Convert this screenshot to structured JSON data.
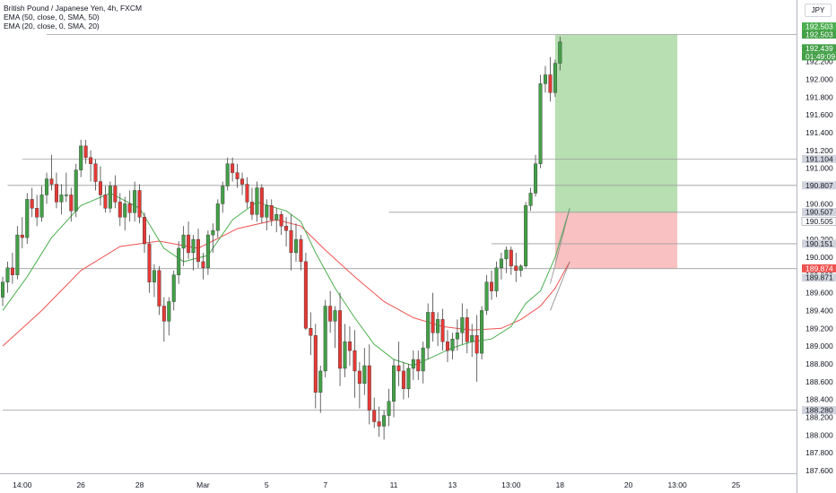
{
  "legend": {
    "symbol": "British Pound / Japanese Yen, 4h, FXCM",
    "ema50": "EMA (50, close, 0, SMA, 50)",
    "ema20": "EMA (20, close, 0, SMA, 20)"
  },
  "currency_label": "JPY",
  "colors": {
    "up": "#26a69a",
    "up_fill": "#43a047",
    "down": "#e53935",
    "ema20": "#4caf50",
    "ema50": "#ef5350",
    "profit_zone": "#b7dfb1",
    "loss_zone": "#f9c1c1",
    "axis_text": "#131722",
    "hline": "#9e9e9e",
    "price_tag": "#43a047",
    "stop_tag": "#ef5350"
  },
  "chart_data": {
    "type": "candlestick",
    "y_axis": {
      "range": [
        187.5,
        192.75
      ],
      "ticks": [
        "192.200",
        "192.000",
        "191.800",
        "191.600",
        "191.400",
        "191.200",
        "191.000",
        "190.800",
        "190.600",
        "190.400",
        "190.200",
        "190.000",
        "189.800",
        "189.600",
        "189.400",
        "189.200",
        "189.000",
        "188.800",
        "188.600",
        "188.400",
        "188.200",
        "188.000",
        "187.800",
        "187.600"
      ],
      "tick_values": [
        192.2,
        192.0,
        191.8,
        191.6,
        191.4,
        191.2,
        191.0,
        190.8,
        190.6,
        190.4,
        190.2,
        190.0,
        189.8,
        189.6,
        189.4,
        189.2,
        189.0,
        188.8,
        188.6,
        188.4,
        188.2,
        188.0,
        187.8,
        187.6
      ]
    },
    "x_axis": {
      "labels": [
        "14:00",
        "26",
        "28",
        "Mar",
        "5",
        "7",
        "11",
        "13",
        "13:00",
        "18",
        "20",
        "13:00",
        "25"
      ],
      "label_bars": [
        4,
        16,
        28,
        41,
        54,
        66,
        80,
        92,
        104,
        114,
        128,
        138,
        150
      ]
    },
    "ohlc": [
      [
        189.55,
        189.78,
        189.45,
        189.72
      ],
      [
        189.72,
        189.95,
        189.6,
        189.88
      ],
      [
        189.88,
        190.05,
        189.7,
        189.8
      ],
      [
        189.8,
        190.35,
        189.75,
        190.25
      ],
      [
        190.25,
        190.45,
        190.1,
        190.22
      ],
      [
        190.22,
        190.72,
        190.15,
        190.65
      ],
      [
        190.65,
        190.78,
        190.45,
        190.55
      ],
      [
        190.55,
        190.7,
        190.35,
        190.45
      ],
      [
        190.45,
        190.8,
        190.4,
        190.7
      ],
      [
        190.7,
        190.95,
        190.6,
        190.88
      ],
      [
        190.88,
        191.15,
        190.75,
        190.82
      ],
      [
        190.82,
        190.95,
        190.55,
        190.62
      ],
      [
        190.62,
        190.82,
        190.48,
        190.7
      ],
      [
        190.7,
        190.95,
        190.62,
        190.7
      ],
      [
        190.7,
        190.78,
        190.4,
        190.52
      ],
      [
        190.52,
        191.05,
        190.45,
        190.98
      ],
      [
        190.98,
        191.32,
        190.9,
        191.25
      ],
      [
        191.25,
        191.32,
        191.05,
        191.12
      ],
      [
        191.12,
        191.2,
        190.85,
        191.05
      ],
      [
        191.05,
        191.1,
        190.75,
        190.85
      ],
      [
        190.85,
        191.02,
        190.58,
        190.7
      ],
      [
        190.7,
        190.8,
        190.5,
        190.55
      ],
      [
        190.55,
        190.85,
        190.5,
        190.8
      ],
      [
        190.8,
        190.92,
        190.55,
        190.62
      ],
      [
        190.62,
        190.72,
        190.35,
        190.45
      ],
      [
        190.45,
        190.68,
        190.3,
        190.6
      ],
      [
        190.6,
        190.75,
        190.4,
        190.5
      ],
      [
        190.5,
        190.85,
        190.4,
        190.75
      ],
      [
        190.75,
        190.82,
        190.38,
        190.45
      ],
      [
        190.45,
        190.5,
        190.05,
        190.15
      ],
      [
        190.15,
        190.25,
        189.6,
        189.72
      ],
      [
        189.72,
        189.92,
        189.55,
        189.85
      ],
      [
        189.85,
        189.9,
        189.35,
        189.45
      ],
      [
        189.45,
        189.55,
        189.05,
        189.28
      ],
      [
        189.28,
        189.55,
        189.12,
        189.5
      ],
      [
        189.5,
        189.85,
        189.4,
        189.8
      ],
      [
        189.8,
        190.18,
        189.7,
        190.1
      ],
      [
        190.1,
        190.35,
        189.9,
        190.25
      ],
      [
        190.25,
        190.4,
        189.98,
        190.05
      ],
      [
        190.05,
        190.25,
        189.85,
        190.2
      ],
      [
        190.2,
        190.32,
        189.88,
        189.95
      ],
      [
        189.95,
        190.05,
        189.75,
        189.88
      ],
      [
        189.88,
        190.3,
        189.8,
        190.25
      ],
      [
        190.25,
        190.38,
        190.05,
        190.3
      ],
      [
        190.3,
        190.65,
        190.22,
        190.6
      ],
      [
        190.6,
        190.85,
        190.5,
        190.8
      ],
      [
        190.8,
        191.12,
        190.75,
        191.05
      ],
      [
        191.05,
        191.12,
        190.85,
        190.95
      ],
      [
        190.95,
        191.05,
        190.78,
        190.88
      ],
      [
        190.88,
        190.95,
        190.7,
        190.82
      ],
      [
        190.82,
        190.9,
        190.55,
        190.62
      ],
      [
        190.62,
        190.78,
        190.42,
        190.48
      ],
      [
        190.48,
        190.85,
        190.4,
        190.78
      ],
      [
        190.78,
        190.82,
        190.38,
        190.45
      ],
      [
        190.45,
        190.65,
        190.3,
        190.58
      ],
      [
        190.58,
        190.65,
        190.35,
        190.42
      ],
      [
        190.42,
        190.55,
        190.28,
        190.48
      ],
      [
        190.48,
        190.52,
        190.25,
        190.35
      ],
      [
        190.35,
        190.45,
        190.12,
        190.3
      ],
      [
        190.3,
        190.48,
        189.85,
        190.05
      ],
      [
        190.05,
        190.38,
        189.95,
        190.2
      ],
      [
        190.2,
        190.25,
        189.85,
        189.95
      ],
      [
        189.95,
        190.05,
        189.18,
        189.2
      ],
      [
        189.2,
        189.38,
        188.9,
        189.12
      ],
      [
        189.12,
        189.25,
        188.3,
        188.48
      ],
      [
        188.48,
        188.78,
        188.25,
        188.72
      ],
      [
        188.72,
        189.52,
        188.65,
        189.45
      ],
      [
        189.45,
        189.62,
        189.15,
        189.28
      ],
      [
        189.28,
        189.45,
        188.98,
        189.4
      ],
      [
        189.4,
        189.6,
        188.55,
        188.75
      ],
      [
        188.75,
        189.25,
        188.65,
        189.05
      ],
      [
        189.05,
        189.22,
        188.78,
        188.95
      ],
      [
        188.95,
        189.18,
        188.42,
        188.72
      ],
      [
        188.72,
        188.82,
        188.3,
        188.58
      ],
      [
        188.58,
        188.98,
        188.45,
        188.78
      ],
      [
        188.78,
        189.02,
        188.12,
        188.28
      ],
      [
        188.28,
        188.42,
        188.08,
        188.15
      ],
      [
        188.15,
        188.32,
        187.98,
        188.1
      ],
      [
        188.1,
        188.28,
        187.95,
        188.22
      ],
      [
        188.22,
        188.52,
        188.1,
        188.38
      ],
      [
        188.38,
        188.85,
        188.2,
        188.78
      ],
      [
        188.78,
        189.05,
        188.55,
        188.72
      ],
      [
        188.72,
        188.82,
        188.4,
        188.52
      ],
      [
        188.52,
        188.8,
        188.42,
        188.75
      ],
      [
        188.75,
        188.95,
        188.62,
        188.85
      ],
      [
        188.85,
        188.95,
        188.62,
        188.72
      ],
      [
        188.72,
        189.05,
        188.58,
        188.98
      ],
      [
        188.98,
        189.48,
        188.85,
        189.38
      ],
      [
        189.38,
        189.6,
        189.05,
        189.15
      ],
      [
        189.15,
        189.38,
        189.0,
        189.3
      ],
      [
        189.3,
        189.42,
        188.95,
        189.05
      ],
      [
        189.05,
        189.18,
        188.82,
        188.95
      ],
      [
        188.95,
        189.15,
        188.85,
        189.08
      ],
      [
        189.08,
        189.3,
        188.95,
        189.15
      ],
      [
        189.15,
        189.48,
        189.02,
        189.32
      ],
      [
        189.32,
        189.42,
        188.92,
        189.05
      ],
      [
        189.05,
        189.25,
        188.88,
        189.12
      ],
      [
        189.12,
        189.35,
        188.6,
        188.92
      ],
      [
        188.92,
        189.45,
        188.85,
        189.4
      ],
      [
        189.4,
        189.8,
        189.35,
        189.72
      ],
      [
        189.72,
        189.85,
        189.52,
        189.62
      ],
      [
        189.62,
        189.95,
        189.55,
        189.88
      ],
      [
        189.88,
        190.05,
        189.75,
        189.98
      ],
      [
        189.98,
        190.12,
        189.82,
        190.08
      ],
      [
        190.08,
        190.12,
        189.8,
        189.9
      ],
      [
        189.9,
        190.05,
        189.72,
        189.85
      ],
      [
        189.85,
        189.92,
        189.78,
        189.9
      ],
      [
        189.9,
        190.62,
        189.88,
        190.58
      ],
      [
        190.58,
        190.78,
        190.52,
        190.72
      ],
      [
        190.72,
        191.15,
        190.68,
        191.05
      ],
      [
        191.05,
        192.05,
        191.0,
        191.95
      ],
      [
        191.95,
        192.15,
        191.85,
        192.05
      ],
      [
        192.05,
        192.25,
        191.75,
        191.85
      ],
      [
        191.85,
        192.22,
        191.8,
        192.18
      ],
      [
        192.18,
        192.48,
        192.1,
        192.42
      ]
    ],
    "ema20": [
      [
        0,
        189.4
      ],
      [
        5,
        189.78
      ],
      [
        10,
        190.22
      ],
      [
        16,
        190.58
      ],
      [
        22,
        190.72
      ],
      [
        28,
        190.55
      ],
      [
        33,
        190.1
      ],
      [
        37,
        189.95
      ],
      [
        42,
        190.02
      ],
      [
        47,
        190.42
      ],
      [
        52,
        190.62
      ],
      [
        58,
        190.52
      ],
      [
        61,
        190.4
      ],
      [
        64,
        190.05
      ],
      [
        68,
        189.65
      ],
      [
        72,
        189.32
      ],
      [
        76,
        189.02
      ],
      [
        80,
        188.85
      ],
      [
        84,
        188.78
      ],
      [
        88,
        188.88
      ],
      [
        92,
        188.98
      ],
      [
        96,
        189.05
      ],
      [
        100,
        189.08
      ],
      [
        104,
        189.22
      ],
      [
        107,
        189.48
      ],
      [
        110,
        189.62
      ],
      [
        113,
        190.0
      ],
      [
        116,
        190.55
      ]
    ],
    "ema50": [
      [
        0,
        189.0
      ],
      [
        8,
        189.4
      ],
      [
        16,
        189.85
      ],
      [
        24,
        190.12
      ],
      [
        32,
        190.18
      ],
      [
        40,
        190.1
      ],
      [
        48,
        190.32
      ],
      [
        56,
        190.42
      ],
      [
        61,
        190.35
      ],
      [
        66,
        190.08
      ],
      [
        72,
        189.78
      ],
      [
        78,
        189.5
      ],
      [
        84,
        189.32
      ],
      [
        90,
        189.22
      ],
      [
        96,
        189.18
      ],
      [
        102,
        189.2
      ],
      [
        106,
        189.3
      ],
      [
        110,
        189.45
      ],
      [
        113,
        189.65
      ],
      [
        116,
        189.95
      ]
    ],
    "horizontal_levels": [
      {
        "price": 192.503,
        "x_start_bar": 9
      },
      {
        "price": 191.104,
        "x_start_bar": 4
      },
      {
        "price": 190.807,
        "x_start_bar": 1
      },
      {
        "price": 190.505,
        "x_start_bar": 79
      },
      {
        "price": 190.151,
        "x_start_bar": 100
      },
      {
        "price": 189.871,
        "x_start_bar": 1
      },
      {
        "price": 188.28,
        "x_start_bar": 0
      }
    ],
    "position": {
      "entry": 190.505,
      "target": 192.503,
      "stop": 189.874,
      "start_bar": 113,
      "end_bar": 138
    },
    "projection_lines": [
      [
        [
          112,
          189.7
        ],
        [
          116,
          190.55
        ]
      ],
      [
        [
          112,
          189.4
        ],
        [
          116,
          189.95
        ]
      ]
    ]
  },
  "price_tags": [
    {
      "text": "192.503",
      "price": 192.503,
      "color": "#4caf50",
      "offset": -9
    },
    {
      "text": "192.503",
      "price": 192.503,
      "color": "#43a047",
      "offset": 0
    },
    {
      "text": "192.439",
      "price": 192.439,
      "color": "#43a047",
      "offset": 9
    },
    {
      "text": "01:49:09",
      "price": 192.439,
      "color": "#43a047",
      "offset": 18
    },
    {
      "text": "191.104",
      "price": 191.104,
      "color": "#d1d4dc",
      "offset": 0,
      "dark": true
    },
    {
      "text": "190.807",
      "price": 190.807,
      "color": "#d1d4dc",
      "offset": 0,
      "dark": true
    },
    {
      "text": "190.507",
      "price": 190.507,
      "color": "#d1d4dc",
      "offset": 0,
      "dark": true
    },
    {
      "text": "190.505",
      "price": 190.505,
      "color": "#ffffff",
      "offset": 10,
      "dark": true,
      "bordered": true
    },
    {
      "text": "190.151",
      "price": 190.151,
      "color": "#d1d4dc",
      "offset": 0,
      "dark": true
    },
    {
      "text": "189.874",
      "price": 189.874,
      "color": "#ef5350",
      "offset": 0
    },
    {
      "text": "189.871",
      "price": 189.871,
      "color": "#d1d4dc",
      "offset": 10,
      "dark": true
    },
    {
      "text": "188.280",
      "price": 188.28,
      "color": "#d1d4dc",
      "offset": 0,
      "dark": true
    }
  ]
}
